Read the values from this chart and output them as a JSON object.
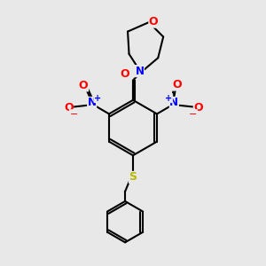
{
  "background_color": "#e8e8e8",
  "bond_color": "#000000",
  "bond_width": 1.5,
  "atom_colors": {
    "O": "#ff0000",
    "N": "#0000ff",
    "S": "#b8b800",
    "C": "#000000"
  },
  "figsize": [
    3.0,
    3.0
  ],
  "dpi": 100
}
